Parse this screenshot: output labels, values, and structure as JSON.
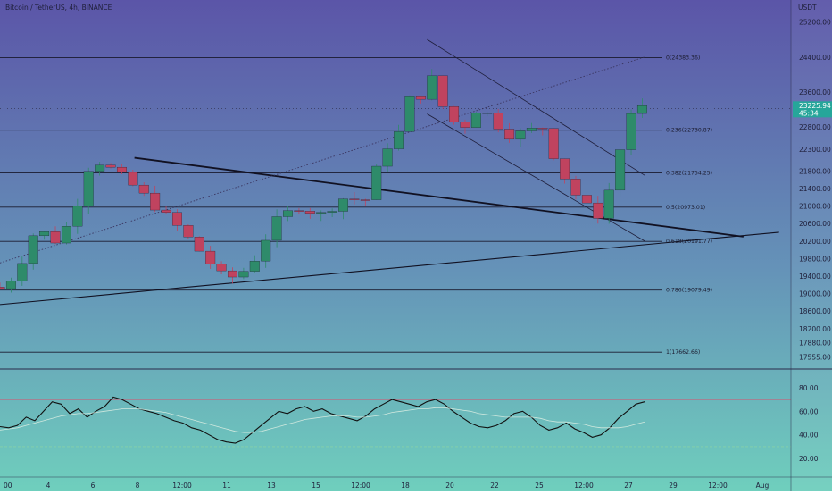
{
  "header": {
    "symbol_title": "Bitcoin / TetherUS, 4h, BINANCE",
    "currency": "USDT"
  },
  "price": {
    "last": "23225.94",
    "countdown": "45:34",
    "last_value": 23225.94,
    "badge_color": "#26a69a"
  },
  "colors": {
    "bg_top": "#5b55a8",
    "bg_bottom": "#6fcfbd",
    "up_candle": "#2e8b6a",
    "down_candle": "#c0435f",
    "rsi_line": "#111111",
    "rsi_ma": "#cfe8de",
    "rsi_upper": "#d9506c"
  },
  "chart_data": [
    {
      "type": "candlestick",
      "title": "Bitcoin / TetherUS, 4h, BINANCE",
      "ylim": [
        17300,
        25700
      ],
      "y_ticks": [
        "25200.00",
        "24400.00",
        "23600.00",
        "22800.00",
        "22300.00",
        "21800.00",
        "21400.00",
        "21000.00",
        "20600.00",
        "20200.00",
        "19800.00",
        "19400.00",
        "19000.00",
        "18600.00",
        "18200.00",
        "17880.00",
        "17555.00"
      ],
      "x_labels": [
        "00",
        "4",
        "6",
        "8",
        "12:00",
        "11",
        "13",
        "15",
        "12:00",
        "18",
        "20",
        "22",
        "25",
        "12:00",
        "27",
        "29",
        "12:00",
        "Aug"
      ],
      "fib_levels": [
        {
          "label": "0(24383.36)",
          "value": 24383.36
        },
        {
          "label": "0.236(22730.87)",
          "value": 22730.87
        },
        {
          "label": "0.382(21754.25)",
          "value": 21754.25
        },
        {
          "label": "0.5(20973.01)",
          "value": 20973.01
        },
        {
          "label": "0.618(20191.77)",
          "value": 20191.77
        },
        {
          "label": "0.786(19079.49)",
          "value": 19079.49
        },
        {
          "label": "1(17662.66)",
          "value": 17662.66
        }
      ],
      "price_key_points": [
        {
          "t": 0,
          "price": 19150
        },
        {
          "t": 4,
          "price": 19100
        },
        {
          "t": 8,
          "price": 19700
        },
        {
          "t": 12,
          "price": 20500
        },
        {
          "t": 17,
          "price": 20200
        },
        {
          "t": 21,
          "price": 20700
        },
        {
          "t": 26,
          "price": 22100
        },
        {
          "t": 30,
          "price": 21900
        },
        {
          "t": 36,
          "price": 21500
        },
        {
          "t": 42,
          "price": 21000
        },
        {
          "t": 48,
          "price": 20500
        },
        {
          "t": 54,
          "price": 19900
        },
        {
          "t": 60,
          "price": 19300
        },
        {
          "t": 66,
          "price": 19600
        },
        {
          "t": 72,
          "price": 20600
        },
        {
          "t": 78,
          "price": 21000
        },
        {
          "t": 84,
          "price": 20800
        },
        {
          "t": 90,
          "price": 21200
        },
        {
          "t": 95,
          "price": 21100
        },
        {
          "t": 100,
          "price": 22300
        },
        {
          "t": 104,
          "price": 22700
        },
        {
          "t": 107,
          "price": 23600
        },
        {
          "t": 110,
          "price": 23500
        },
        {
          "t": 112,
          "price": 23900
        },
        {
          "t": 116,
          "price": 23000
        },
        {
          "t": 120,
          "price": 22800
        },
        {
          "t": 124,
          "price": 23300
        },
        {
          "t": 128,
          "price": 22900
        },
        {
          "t": 132,
          "price": 22600
        },
        {
          "t": 136,
          "price": 22700
        },
        {
          "t": 140,
          "price": 22800
        },
        {
          "t": 144,
          "price": 21900
        },
        {
          "t": 148,
          "price": 21300
        },
        {
          "t": 150,
          "price": 21100
        },
        {
          "t": 152,
          "price": 20900
        },
        {
          "t": 154,
          "price": 20800
        },
        {
          "t": 156,
          "price": 21200
        },
        {
          "t": 158,
          "price": 21600
        },
        {
          "t": 161,
          "price": 22900
        },
        {
          "t": 163,
          "price": 23226
        }
      ],
      "trendlines": [
        {
          "name": "descending",
          "from": {
            "t": 34,
            "price": 22100
          },
          "to": {
            "t": 188,
            "price": 20300
          }
        },
        {
          "name": "ascending",
          "from": {
            "t": 0,
            "price": 18750
          },
          "to": {
            "t": 197,
            "price": 20400
          }
        },
        {
          "name": "dotted",
          "from": {
            "t": 0,
            "price": 19700
          },
          "to": {
            "t": 163,
            "price": 24400
          }
        },
        {
          "name": "channel-top",
          "from": {
            "t": 108,
            "price": 24800
          },
          "to": {
            "t": 163,
            "price": 21700
          }
        },
        {
          "name": "channel-bottom",
          "from": {
            "t": 108,
            "price": 23100
          },
          "to": {
            "t": 163,
            "price": 20200
          }
        }
      ]
    },
    {
      "type": "line",
      "title": "",
      "ylim": [
        5,
        95
      ],
      "y_ticks": [
        "80.00",
        "60.00",
        "40.00",
        "20.00"
      ],
      "upper_band": 70,
      "lower_band": 30,
      "series": [
        {
          "values": [
            47,
            46,
            48,
            55,
            52,
            60,
            68,
            66,
            58,
            62,
            55,
            60,
            64,
            72,
            70,
            66,
            62,
            60,
            58,
            55,
            52,
            50,
            46,
            44,
            40,
            36,
            34,
            33,
            36,
            42,
            48,
            54,
            60,
            58,
            62,
            64,
            60,
            62,
            58,
            56,
            54,
            52,
            56,
            62,
            66,
            70,
            68,
            66,
            64,
            68,
            70,
            66,
            60,
            55,
            50,
            47,
            46,
            48,
            52,
            58,
            60,
            55,
            48,
            44,
            46,
            50,
            45,
            42,
            38,
            40,
            46,
            54,
            60,
            66,
            68
          ]
        },
        {
          "values": [
            44,
            45,
            46,
            48,
            50,
            52,
            54,
            56,
            57,
            58,
            58,
            59,
            60,
            61,
            62,
            62,
            62,
            61,
            60,
            59,
            57,
            55,
            53,
            51,
            49,
            47,
            45,
            43,
            42,
            42,
            43,
            45,
            47,
            49,
            51,
            53,
            54,
            55,
            56,
            56,
            56,
            55,
            55,
            56,
            57,
            59,
            60,
            61,
            62,
            62,
            63,
            63,
            62,
            61,
            60,
            58,
            57,
            56,
            55,
            55,
            55,
            55,
            54,
            52,
            51,
            51,
            50,
            49,
            47,
            46,
            46,
            46,
            47,
            49,
            51
          ]
        }
      ]
    }
  ]
}
